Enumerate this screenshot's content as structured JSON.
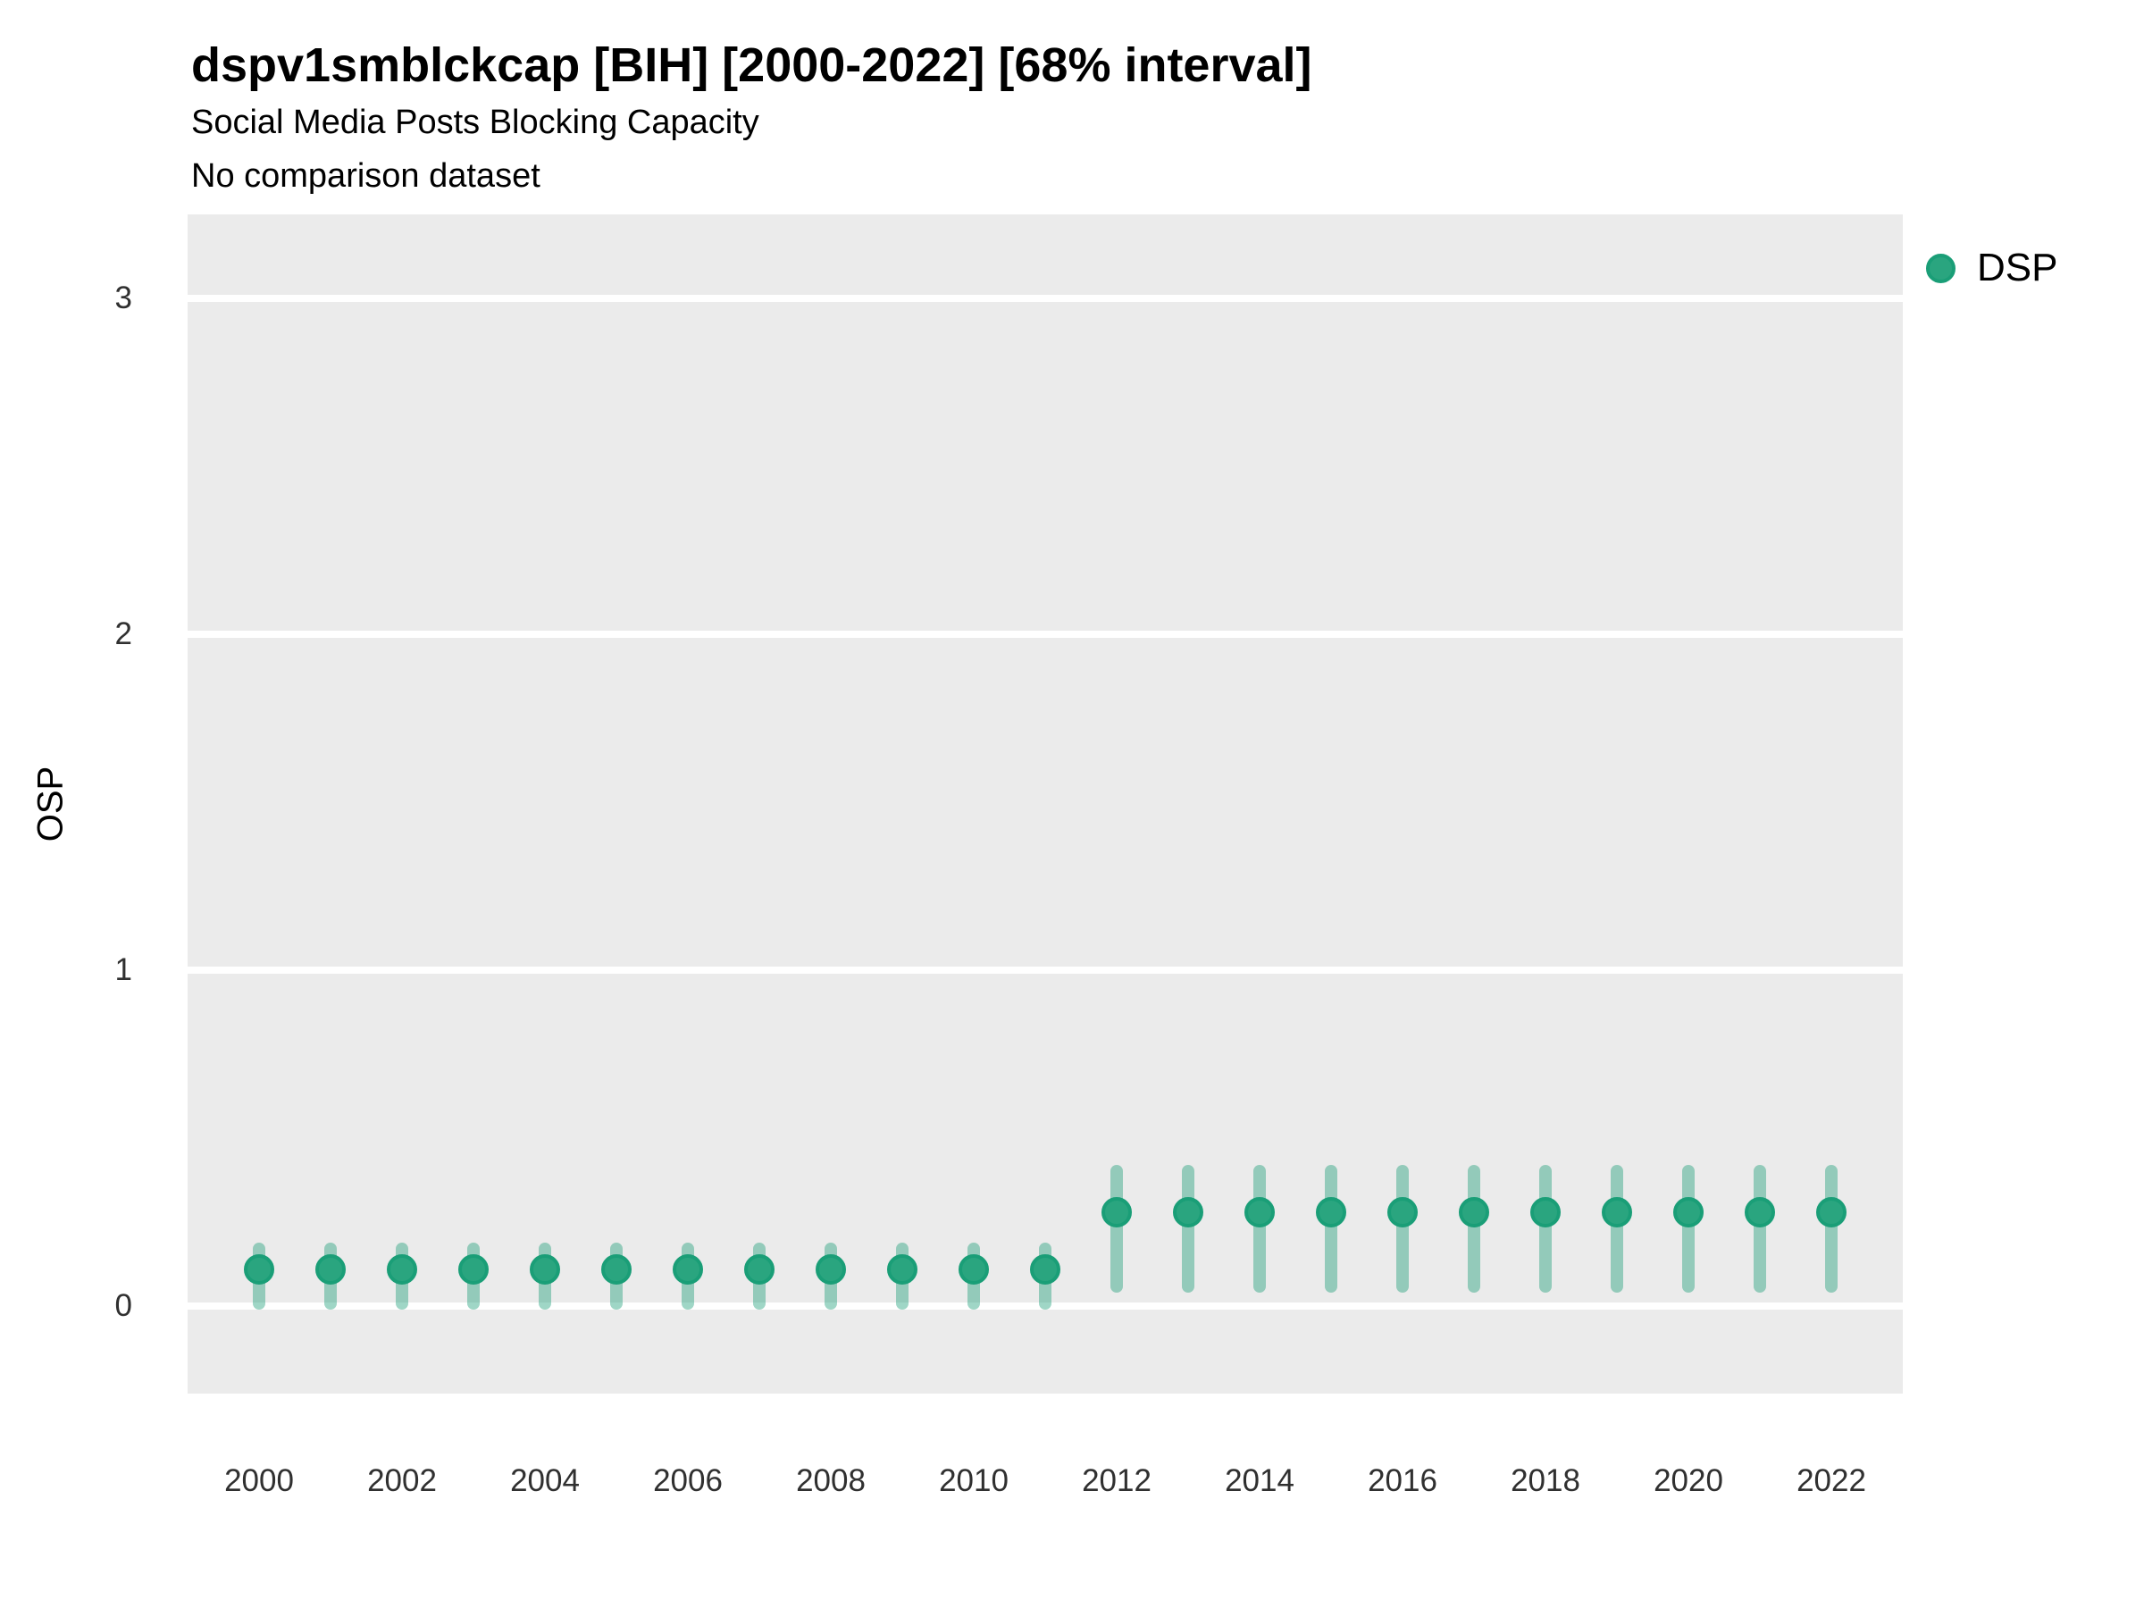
{
  "header": {
    "title": "dspv1smblckcap [BIH] [2000-2022] [68% interval]",
    "subtitle": "Social Media Posts Blocking Capacity",
    "note": "No comparison dataset"
  },
  "legend": {
    "position": "right",
    "items": [
      {
        "label": "DSP",
        "color": "#2aa57f",
        "border_color": "#1a9e77"
      }
    ]
  },
  "axes": {
    "ylabel": "OSP",
    "xlabel": "",
    "y_tick_labels": [
      "0",
      "1",
      "2",
      "3"
    ],
    "x_tick_labels": [
      "2000",
      "2002",
      "2004",
      "2006",
      "2008",
      "2010",
      "2012",
      "2014",
      "2016",
      "2018",
      "2020",
      "2022"
    ]
  },
  "colors": {
    "panel_background": "#EBEBEB",
    "gridline": "#FFFFFF",
    "point_fill": "#2aa57f",
    "point_border": "#1a9e77",
    "interval_fill": "rgba(27,158,119,0.42)",
    "tick_text": "#303030",
    "page_background": "#FFFFFF"
  },
  "chart_data": {
    "type": "scatter",
    "title": "dspv1smblckcap [BIH] [2000-2022] [68% interval]",
    "subtitle": "Social Media Posts Blocking Capacity",
    "note": "No comparison dataset",
    "interval_label": "68% interval",
    "xlabel": "",
    "ylabel": "OSP",
    "grid": "horizontal-major-only",
    "legend_position": "right",
    "xlim": [
      1999,
      2023
    ],
    "ylim": [
      -0.26,
      3.25
    ],
    "y_ticks": [
      0,
      1,
      2,
      3
    ],
    "x_ticks": [
      2000,
      2002,
      2004,
      2006,
      2008,
      2010,
      2012,
      2014,
      2016,
      2018,
      2020,
      2022
    ],
    "series": [
      {
        "name": "DSP",
        "color": "#2aa57f",
        "interval_color": "rgba(27,158,119,0.42)",
        "x": [
          2000,
          2001,
          2002,
          2003,
          2004,
          2005,
          2006,
          2007,
          2008,
          2009,
          2010,
          2011,
          2012,
          2013,
          2014,
          2015,
          2016,
          2017,
          2018,
          2019,
          2020,
          2021,
          2022
        ],
        "y": [
          0.11,
          0.11,
          0.11,
          0.11,
          0.11,
          0.11,
          0.11,
          0.11,
          0.11,
          0.11,
          0.11,
          0.11,
          0.28,
          0.28,
          0.28,
          0.28,
          0.28,
          0.28,
          0.28,
          0.28,
          0.28,
          0.28,
          0.28
        ],
        "y_lo": [
          -0.01,
          -0.01,
          -0.01,
          -0.01,
          -0.01,
          -0.01,
          -0.01,
          -0.01,
          -0.01,
          -0.01,
          -0.01,
          -0.01,
          0.04,
          0.04,
          0.04,
          0.04,
          0.04,
          0.04,
          0.04,
          0.04,
          0.04,
          0.04,
          0.04
        ],
        "y_hi": [
          0.19,
          0.19,
          0.19,
          0.19,
          0.19,
          0.19,
          0.19,
          0.19,
          0.19,
          0.19,
          0.19,
          0.19,
          0.42,
          0.42,
          0.42,
          0.42,
          0.42,
          0.42,
          0.42,
          0.42,
          0.42,
          0.42,
          0.42
        ]
      }
    ]
  }
}
